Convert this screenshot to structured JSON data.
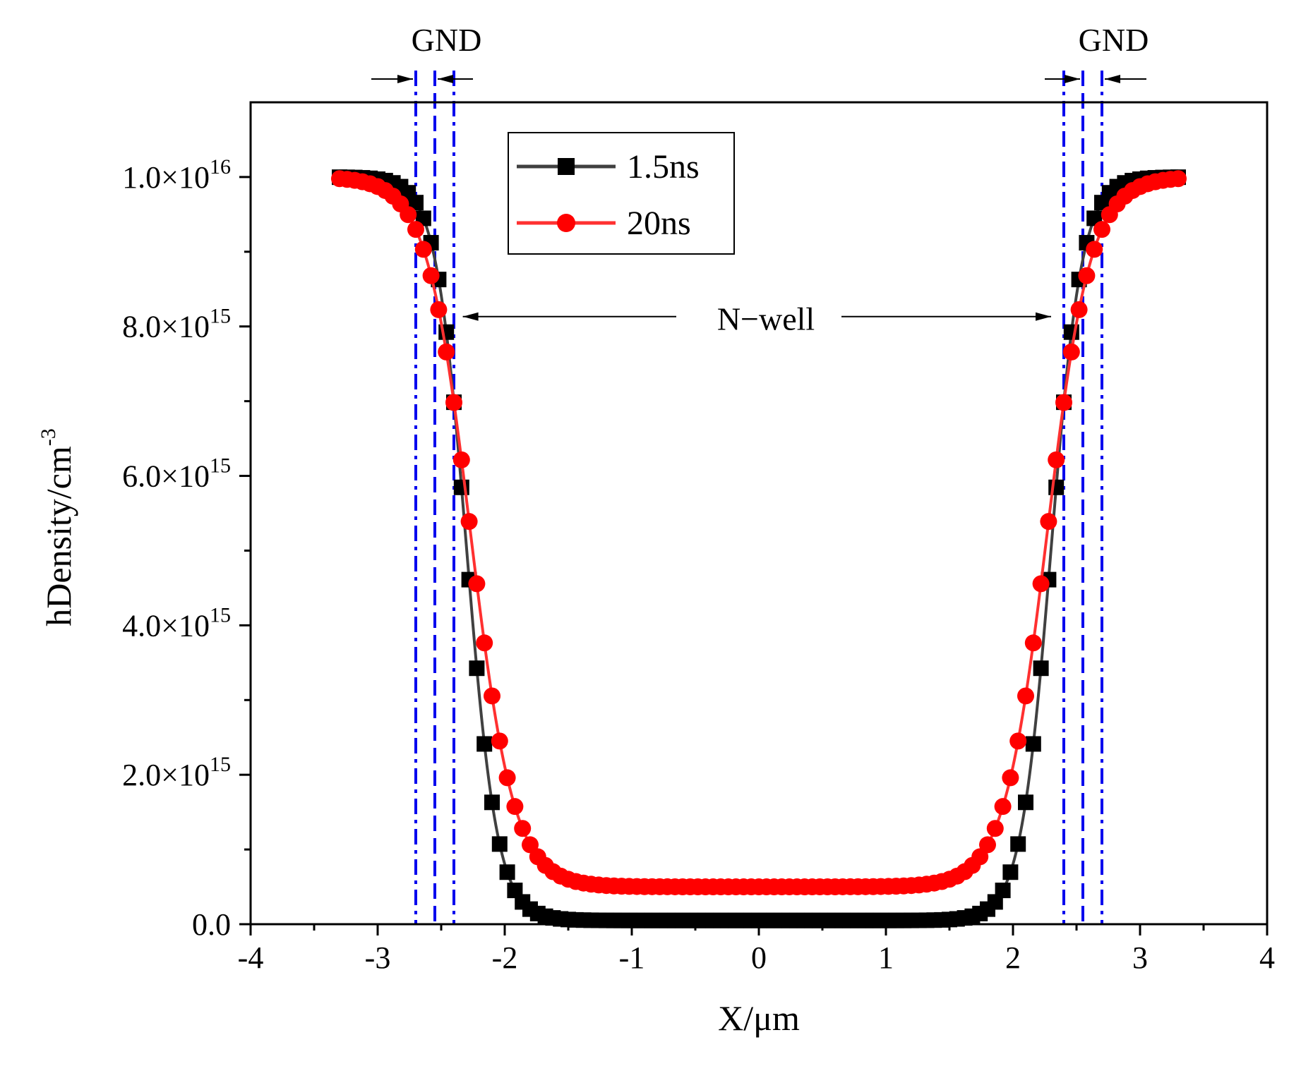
{
  "chart_data": {
    "type": "line",
    "title": "",
    "xlabel": "X/μm",
    "ylabel": "hDensity/cm",
    "ylabel_exp": "-3",
    "xlim": [
      -4,
      4
    ],
    "ylim": [
      0,
      1.1e+16
    ],
    "x_ticks": [
      {
        "v": -4,
        "label": "-4"
      },
      {
        "v": -3,
        "label": "-3"
      },
      {
        "v": -2,
        "label": "-2"
      },
      {
        "v": -1,
        "label": "-1"
      },
      {
        "v": 0,
        "label": "0"
      },
      {
        "v": 1,
        "label": "1"
      },
      {
        "v": 2,
        "label": "2"
      },
      {
        "v": 3,
        "label": "3"
      },
      {
        "v": 4,
        "label": "4"
      }
    ],
    "y_ticks": [
      {
        "v": 0,
        "mant": "0.0",
        "exp": ""
      },
      {
        "v": 2000000000000000.0,
        "mant": "2.0×10",
        "exp": "15"
      },
      {
        "v": 4000000000000000.0,
        "mant": "4.0×10",
        "exp": "15"
      },
      {
        "v": 6000000000000000.0,
        "mant": "6.0×10",
        "exp": "15"
      },
      {
        "v": 8000000000000000.0,
        "mant": "8.0×10",
        "exp": "15"
      },
      {
        "v": 1e+16,
        "mant": "1.0×10",
        "exp": "16"
      }
    ],
    "series": [
      {
        "name": "1.5ns",
        "color": "#000000",
        "line_color": "#404040",
        "marker": "square",
        "model": {
          "floor": 50000000000000.0,
          "edge": 2.3,
          "width": 0.12,
          "top": 1e+16
        }
      },
      {
        "name": "20ns",
        "color": "#ff0000",
        "line_color": "#ff3030",
        "marker": "circle",
        "model": {
          "floor": 500000000000000.0,
          "edge": 2.27,
          "width": 0.17,
          "top": 1e+16
        }
      }
    ],
    "x_range": [
      -3.3,
      3.3
    ],
    "x_step": 0.06,
    "legend": {
      "position": "top-center"
    },
    "boundaries": [
      {
        "x": -2.7,
        "style": "dashdot"
      },
      {
        "x": -2.55,
        "style": "dashed"
      },
      {
        "x": -2.4,
        "style": "dashdot"
      },
      {
        "x": 2.4,
        "style": "dashdot"
      },
      {
        "x": 2.55,
        "style": "dashed"
      },
      {
        "x": 2.7,
        "style": "dashdot"
      }
    ],
    "boundary_color": "#0000ee",
    "annotations": {
      "gnd_left": "GND",
      "gnd_right": "GND",
      "nwell": "N−well"
    }
  }
}
